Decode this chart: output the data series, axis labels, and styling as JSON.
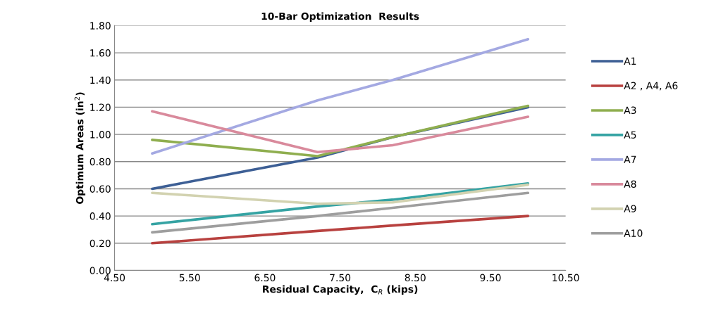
{
  "chart_data": {
    "type": "line",
    "title": "10-Bar Optimization  Results",
    "xlabel": "Residual Capacity,  C$_{R}$ (kips)",
    "ylabel": "Optimum Areas (in$^{2}$)",
    "x": [
      5.0,
      7.2,
      8.2,
      10.0
    ],
    "xlim": [
      4.5,
      10.5
    ],
    "xticks": [
      {
        "value": 4.5,
        "label": "4.50"
      },
      {
        "value": 5.5,
        "label": "5.50"
      },
      {
        "value": 6.5,
        "label": "6.50"
      },
      {
        "value": 7.5,
        "label": "7.50"
      },
      {
        "value": 8.5,
        "label": "8.50"
      },
      {
        "value": 9.5,
        "label": "9.50"
      },
      {
        "value": 10.5,
        "label": "10.50"
      }
    ],
    "ylim": [
      0,
      1.8
    ],
    "yticks": [
      {
        "value": 0,
        "label": "0.00"
      },
      {
        "value": 0.2,
        "label": "0.20"
      },
      {
        "value": 0.4,
        "label": "0.40"
      },
      {
        "value": 0.6,
        "label": "0.60"
      },
      {
        "value": 0.8,
        "label": "0.80"
      },
      {
        "value": 1.0,
        "label": "1.00"
      },
      {
        "value": 1.2,
        "label": "1.20"
      },
      {
        "value": 1.4,
        "label": "1.40"
      },
      {
        "value": 1.6,
        "label": "1.60"
      },
      {
        "value": 1.8,
        "label": "1.80"
      }
    ],
    "grid": "y",
    "legend": "right",
    "marker": "none",
    "line_style": "solid",
    "series": [
      {
        "name": "A1",
        "color": "#3d5f95",
        "values": [
          0.6,
          0.83,
          0.98,
          1.2
        ]
      },
      {
        "name": "A2 , A4, A6",
        "color": "#b8413f",
        "values": [
          0.2,
          0.29,
          0.33,
          0.4
        ]
      },
      {
        "name": "A3",
        "color": "#8fae4f",
        "values": [
          0.96,
          0.84,
          0.98,
          1.21
        ]
      },
      {
        "name": "A5",
        "color": "#35a3a3",
        "values": [
          0.34,
          0.47,
          0.52,
          0.64
        ]
      },
      {
        "name": "A7",
        "color": "#a4a9e2",
        "values": [
          0.86,
          1.25,
          1.4,
          1.7
        ]
      },
      {
        "name": "A8",
        "color": "#d98a9c",
        "values": [
          1.17,
          0.87,
          0.92,
          1.13
        ]
      },
      {
        "name": "A9",
        "color": "#d2d2b0",
        "values": [
          0.57,
          0.49,
          0.5,
          0.63
        ]
      },
      {
        "name": "A10",
        "color": "#9e9e9e",
        "values": [
          0.28,
          0.4,
          0.46,
          0.57
        ]
      }
    ]
  }
}
